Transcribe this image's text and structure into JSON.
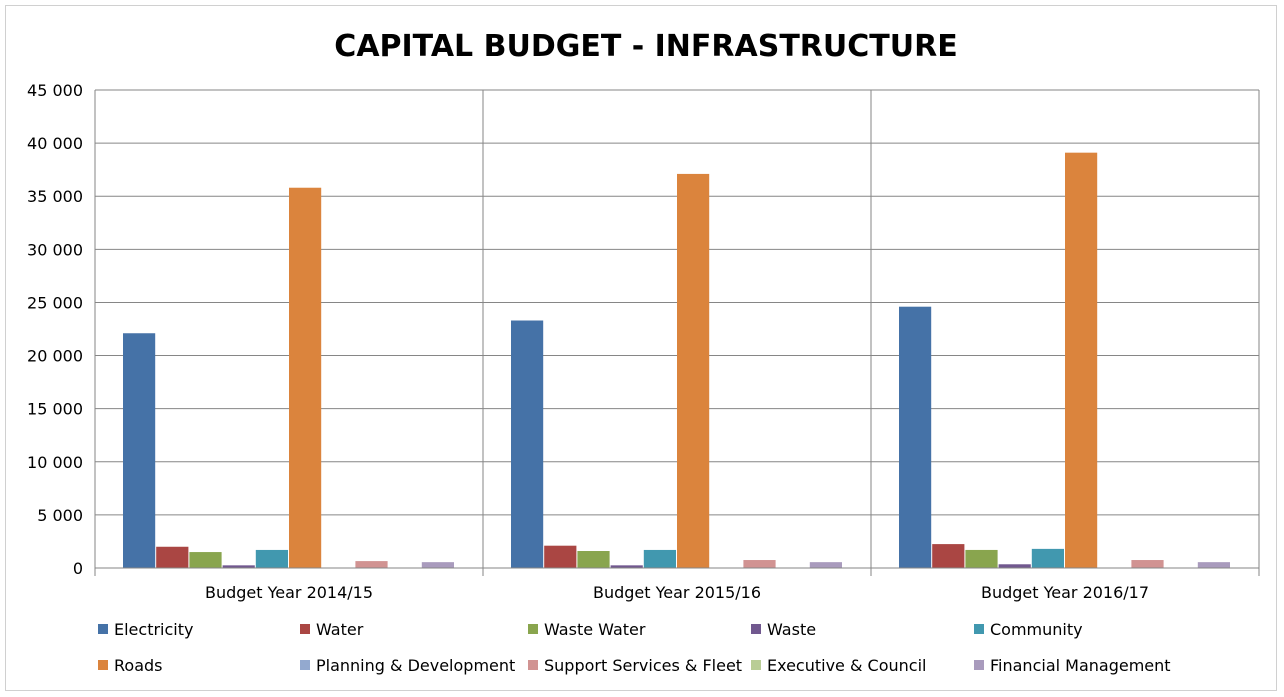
{
  "chart_data": {
    "type": "bar",
    "title": "CAPITAL BUDGET - INFRASTRUCTURE",
    "xlabel": "",
    "ylabel": "",
    "ylim": [
      0,
      45000
    ],
    "yticks": [
      "0",
      "5 000",
      "10 000",
      "15 000",
      "20 000",
      "25 000",
      "30 000",
      "35 000",
      "40 000",
      "45 000"
    ],
    "grid": true,
    "legend_position": "bottom",
    "categories": [
      "Budget Year 2014/15",
      "Budget Year 2015/16",
      "Budget Year 2016/17"
    ],
    "series": [
      {
        "name": "Electricity",
        "color": "#4572a7",
        "values": [
          22100,
          23300,
          24600
        ]
      },
      {
        "name": "Water",
        "color": "#aa4643",
        "values": [
          2000,
          2100,
          2250
        ]
      },
      {
        "name": "Waste Water",
        "color": "#89a54e",
        "values": [
          1500,
          1600,
          1700
        ]
      },
      {
        "name": "Waste",
        "color": "#71588f",
        "values": [
          250,
          250,
          350
        ]
      },
      {
        "name": "Community",
        "color": "#4198af",
        "values": [
          1700,
          1700,
          1800
        ]
      },
      {
        "name": "Roads",
        "color": "#db843d",
        "values": [
          35800,
          37100,
          39100
        ]
      },
      {
        "name": "Planning & Development",
        "color": "#93a9cf",
        "values": [
          0,
          0,
          0
        ]
      },
      {
        "name": "Support Services & Fleet",
        "color": "#d19392",
        "values": [
          650,
          750,
          750
        ]
      },
      {
        "name": "Executive & Council",
        "color": "#b9cd96",
        "values": [
          0,
          0,
          0
        ]
      },
      {
        "name": "Financial Management",
        "color": "#a99bbd",
        "values": [
          550,
          550,
          550
        ]
      }
    ]
  }
}
